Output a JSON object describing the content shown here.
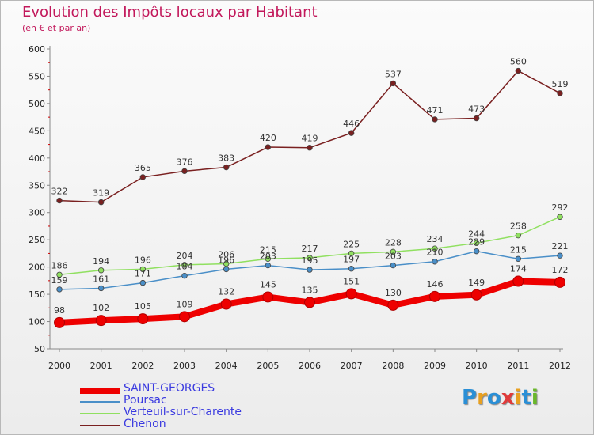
{
  "title": "Evolution des Impôts locaux par Habitant",
  "subtitle": "(en € et par an)",
  "brand": {
    "text": "Proxiti",
    "letter_colors": [
      "#2a8fd6",
      "#e8a020",
      "#2a8fd6",
      "#e03a3a",
      "#e8a020",
      "#2a8fd6",
      "#6ab82a"
    ]
  },
  "chart_data": {
    "type": "line",
    "title": "Evolution des Impôts locaux par Habitant",
    "subtitle": "(en € et par an)",
    "xlabel": "",
    "ylabel": "",
    "ylim": [
      50,
      600
    ],
    "yticks": [
      50,
      100,
      150,
      200,
      250,
      300,
      350,
      400,
      450,
      500,
      550,
      600
    ],
    "x": [
      "2000",
      "2001",
      "2002",
      "2003",
      "2004",
      "2005",
      "2006",
      "2007",
      "2008",
      "2009",
      "2010",
      "2011",
      "2012"
    ],
    "series": [
      {
        "name": "SAINT-GEORGES",
        "color": "#ee0000",
        "values": [
          98,
          102,
          105,
          109,
          132,
          145,
          135,
          151,
          130,
          146,
          149,
          174,
          172
        ]
      },
      {
        "name": "Poursac",
        "color": "#4a8fc8",
        "values": [
          159,
          161,
          171,
          184,
          196,
          203,
          195,
          197,
          203,
          210,
          229,
          215,
          221
        ]
      },
      {
        "name": "Verteuil-sur-Charente",
        "color": "#90e060",
        "values": [
          186,
          194,
          196,
          204,
          206,
          215,
          217,
          225,
          228,
          234,
          244,
          258,
          292
        ]
      },
      {
        "name": "Chenon",
        "color": "#7a2020",
        "values": [
          322,
          319,
          365,
          376,
          383,
          420,
          419,
          446,
          537,
          471,
          473,
          560,
          519
        ]
      }
    ],
    "labels": {
      "SAINT-GEORGES": [
        "98",
        "102",
        "105",
        "109",
        "132",
        "145",
        "135",
        "151",
        "130",
        "146",
        "149",
        "174",
        "172"
      ],
      "Poursac": [
        "159",
        "161",
        "171",
        "184",
        "196",
        "203",
        "195",
        "197",
        "203",
        "210",
        "229",
        "215",
        "221"
      ],
      "Verteuil-sur-Charente": [
        "186",
        "194",
        "196",
        "204",
        "206",
        "215",
        "217",
        "225",
        "228",
        "234",
        "244",
        "258",
        "292"
      ],
      "Chenon": [
        "322",
        "319",
        "365",
        "376",
        "383",
        "420",
        "419",
        "446",
        "537",
        "471",
        "473",
        "560",
        "519"
      ]
    },
    "legend": [
      "SAINT-GEORGES",
      "Poursac",
      "Verteuil-sur-Charente",
      "Chenon"
    ],
    "legend_position": "bottom-left",
    "grid": false
  }
}
